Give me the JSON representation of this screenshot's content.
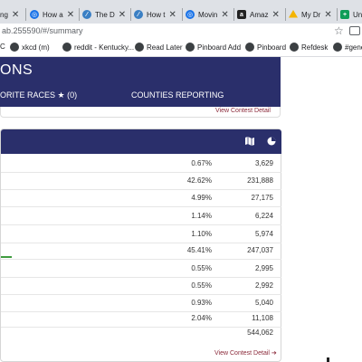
{
  "browser": {
    "tabs": [
      {
        "label": "ng",
        "icon": "none"
      },
      {
        "label": "How a",
        "icon": "globe-icon"
      },
      {
        "label": "The D",
        "icon": "feather-icon"
      },
      {
        "label": "How t",
        "icon": "feather-icon"
      },
      {
        "label": "Movin",
        "icon": "globe-icon"
      },
      {
        "label": "Amaz",
        "icon": "amazon-icon"
      },
      {
        "label": "My Dr",
        "icon": "drive-icon"
      },
      {
        "label": "Un",
        "icon": "plus-icon"
      }
    ],
    "url": "ab.255590/#/summary",
    "bookmarks": [
      "C",
      "xkcd (m)",
      "reddit - Kentucky...",
      "Read Later",
      "Pinboard Add",
      "Pinboard",
      "Refdesk",
      "#gene"
    ]
  },
  "header": {
    "title": "ONS",
    "nav_favorites": "ORITE RACES",
    "nav_favorites_count": "(0)",
    "nav_counties": "COUNTIES REPORTING"
  },
  "prev_card": {
    "link": "View Contest Detail"
  },
  "results": {
    "rows": [
      {
        "pct": "0.67%",
        "votes": "3,629",
        "bar_pct": 0.67
      },
      {
        "pct": "42.62%",
        "votes": "231,888",
        "bar_pct": 42.62
      },
      {
        "pct": "4.99%",
        "votes": "27,175",
        "bar_pct": 4.99
      },
      {
        "pct": "1.14%",
        "votes": "6,224",
        "bar_pct": 1.14
      },
      {
        "pct": "1.10%",
        "votes": "5,974",
        "bar_pct": 1.1
      },
      {
        "pct": "45.41%",
        "votes": "247,037",
        "bar_pct": 45.41
      },
      {
        "pct": "0.55%",
        "votes": "2,995",
        "bar_pct": 0.55
      },
      {
        "pct": "0.55%",
        "votes": "2,992",
        "bar_pct": 0.55
      },
      {
        "pct": "0.93%",
        "votes": "5,040",
        "bar_pct": 0.93
      },
      {
        "pct": "2.04%",
        "votes": "11,108",
        "bar_pct": 2.04
      }
    ],
    "total": "544,062",
    "link": "View Contest Detail"
  },
  "colors": {
    "header": "#2a2f6b",
    "bar": "#3f9b3f",
    "link": "#8b2a3a"
  }
}
